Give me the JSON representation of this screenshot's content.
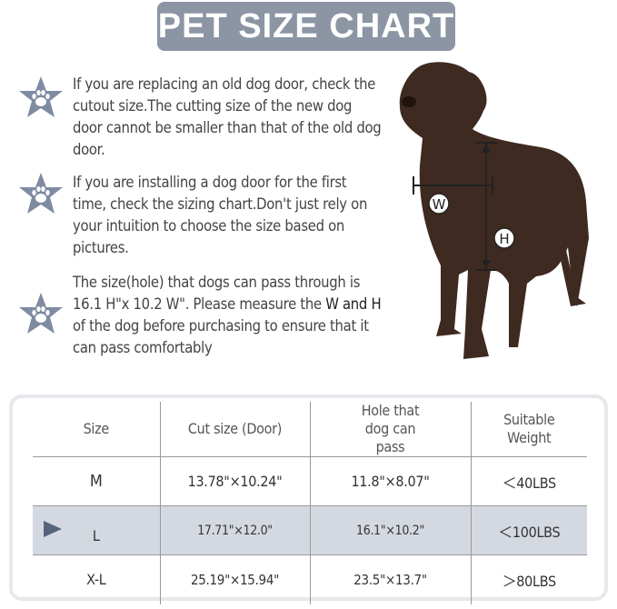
{
  "title": "PET SIZE CHART",
  "tips": [
    {
      "icon": "paw-star-icon",
      "text": "If you are replacing an old dog door, check the cutout size.The cutting size of the new dog door cannot be smaller than that of the old dog door."
    },
    {
      "icon": "paw-star-icon",
      "text": "If you are installing a dog door for the first time, check the sizing chart.Don't just rely on your intuition to choose the size based on pictures."
    },
    {
      "icon": "paw-star-icon",
      "text_before": "The size(hole) that dogs can pass through is 16.1 H\"x 10.2 W\". Please measure the ",
      "text_bold": "W and H",
      "text_after": " of the dog before purchasing to ensure that it can pass comfortably"
    }
  ],
  "dog_labels": {
    "width": "W",
    "height": "H"
  },
  "table": {
    "headers": [
      "Size",
      "Cut size (Door)",
      "Hole that dog can pass",
      "Suitable Weight"
    ],
    "rows": [
      {
        "size": "M",
        "cut": "13.78\"×10.24\"",
        "hole": "11.8\"×8.07\"",
        "weight": "＜40LBS"
      },
      {
        "size": "L",
        "cut": "17.71\"×12.0\"",
        "hole": "16.1\"×10.2\"",
        "weight": "＜100LBS",
        "highlighted": true
      },
      {
        "size": "X-L",
        "cut": "25.19\"×15.94\"",
        "hole": "23.5\"×13.7\"",
        "weight": "＞80LBS"
      }
    ]
  },
  "colors": {
    "banner": "#8b95a4",
    "star": "#7f8ba0",
    "highlight": "#d4d9e1",
    "arrow": "#56657c",
    "dog": "#3e2a20"
  }
}
